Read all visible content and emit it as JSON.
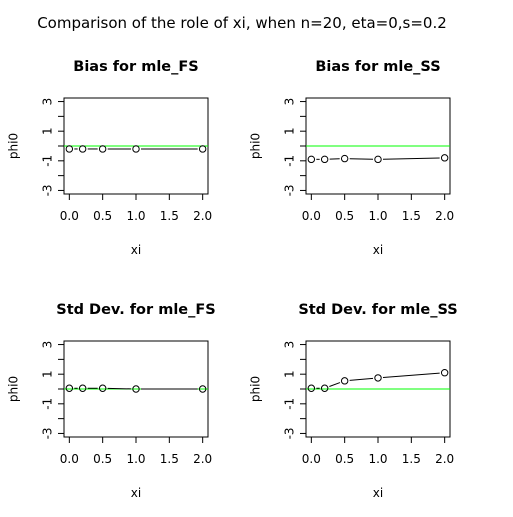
{
  "figure": {
    "title": "Comparison of the role of xi, when n=20, eta=0,s=0.2"
  },
  "chart_data": [
    {
      "type": "line",
      "title": "Bias for mle_FS",
      "xlabel": "xi",
      "ylabel": "phi0",
      "x": [
        0.0,
        0.2,
        0.5,
        1.0,
        2.0
      ],
      "series": [
        {
          "values": [
            -0.2,
            -0.2,
            -0.2,
            -0.2,
            -0.2
          ]
        }
      ],
      "reference_line": {
        "y": 0,
        "color": "#00ff00"
      },
      "xlim": [
        0,
        2
      ],
      "ylim": [
        -3,
        3
      ],
      "xticks": [
        "0.0",
        "0.5",
        "1.0",
        "1.5",
        "2.0"
      ],
      "yticks": [
        "-3",
        "-1",
        "1",
        "3"
      ]
    },
    {
      "type": "line",
      "title": "Bias for mle_SS",
      "xlabel": "xi",
      "ylabel": "phi0",
      "x": [
        0.0,
        0.2,
        0.5,
        1.0,
        2.0
      ],
      "series": [
        {
          "values": [
            -0.9,
            -0.9,
            -0.85,
            -0.9,
            -0.8
          ]
        }
      ],
      "reference_line": {
        "y": 0,
        "color": "#00ff00"
      },
      "xlim": [
        0,
        2
      ],
      "ylim": [
        -3,
        3
      ],
      "xticks": [
        "0.0",
        "0.5",
        "1.0",
        "1.5",
        "2.0"
      ],
      "yticks": [
        "-3",
        "-1",
        "1",
        "3"
      ]
    },
    {
      "type": "line",
      "title": "Std Dev. for mle_FS",
      "xlabel": "xi",
      "ylabel": "phi0",
      "x": [
        0.0,
        0.2,
        0.5,
        1.0,
        2.0
      ],
      "series": [
        {
          "values": [
            0.05,
            0.05,
            0.05,
            0.0,
            0.0
          ]
        }
      ],
      "reference_line": {
        "y": 0,
        "color": "#00ff00"
      },
      "xlim": [
        0,
        2
      ],
      "ylim": [
        -3,
        3
      ],
      "xticks": [
        "0.0",
        "0.5",
        "1.0",
        "1.5",
        "2.0"
      ],
      "yticks": [
        "-3",
        "-1",
        "1",
        "3"
      ]
    },
    {
      "type": "line",
      "title": "Std Dev. for mle_SS",
      "xlabel": "xi",
      "ylabel": "phi0",
      "x": [
        0.0,
        0.2,
        0.5,
        1.0,
        2.0
      ],
      "series": [
        {
          "values": [
            0.05,
            0.05,
            0.55,
            0.75,
            1.1
          ]
        }
      ],
      "reference_line": {
        "y": 0,
        "color": "#00ff00"
      },
      "xlim": [
        0,
        2
      ],
      "ylim": [
        -3,
        3
      ],
      "xticks": [
        "0.0",
        "0.5",
        "1.0",
        "1.5",
        "2.0"
      ],
      "yticks": [
        "-3",
        "-1",
        "1",
        "3"
      ]
    }
  ]
}
